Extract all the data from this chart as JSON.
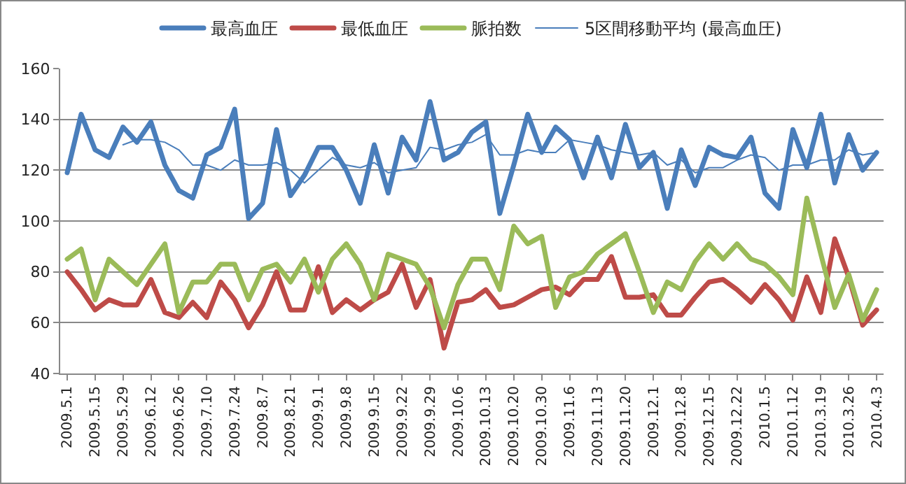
{
  "chart_data": {
    "type": "line",
    "categories": [
      "2009.5.1",
      null,
      "2009.5.15",
      null,
      "2009.5.29",
      null,
      "2009.6.12",
      null,
      "2009.6.26",
      null,
      "2009.7.10",
      null,
      "2009.7.24",
      null,
      "2009.8.7",
      null,
      "2009.8.21",
      null,
      "2009.9.1",
      null,
      "2009.9.8",
      null,
      "2009.9.15",
      null,
      "2009.9.22",
      null,
      "2009.9.29",
      null,
      "2009.10.6",
      null,
      "2009.10.13",
      null,
      "2009.10.20",
      null,
      "2009.10.30",
      null,
      "2009.11.6",
      null,
      "2009.11.13",
      null,
      "2009.11.20",
      null,
      "2009.12.1",
      null,
      "2009.12.8",
      null,
      "2009.12.15",
      null,
      "2009.12.22",
      null,
      "2010.1.5",
      null,
      "2010.1.12",
      null,
      "2010.3.19",
      null,
      "2010.3.26",
      null,
      "2010.4.3"
    ],
    "series": [
      {
        "name": "最高血圧",
        "color": "#4a7ebb",
        "values": [
          119,
          142,
          128,
          125,
          137,
          131,
          139,
          122,
          112,
          109,
          126,
          129,
          144,
          101,
          107,
          136,
          110,
          118,
          129,
          129,
          120,
          107,
          130,
          111,
          133,
          124,
          147,
          124,
          127,
          135,
          139,
          103,
          122,
          142,
          127,
          137,
          132,
          117,
          133,
          117,
          138,
          121,
          127,
          105,
          128,
          114,
          129,
          126,
          125,
          133,
          111,
          105,
          136,
          121,
          142,
          115,
          134,
          120,
          127
        ]
      },
      {
        "name": "最低血圧",
        "color": "#be4b48",
        "values": [
          80,
          73,
          65,
          69,
          67,
          67,
          77,
          64,
          62,
          68,
          62,
          76,
          69,
          58,
          67,
          80,
          65,
          65,
          82,
          64,
          69,
          65,
          69,
          72,
          83,
          66,
          77,
          50,
          68,
          69,
          73,
          66,
          67,
          70,
          73,
          74,
          71,
          77,
          77,
          86,
          70,
          70,
          71,
          63,
          63,
          70,
          76,
          77,
          73,
          68,
          75,
          69,
          61,
          78,
          64,
          93,
          78,
          59,
          65
        ]
      },
      {
        "name": "脈拍数",
        "color": "#9bbb59",
        "values": [
          85,
          89,
          69,
          85,
          80,
          75,
          83,
          91,
          64,
          76,
          76,
          83,
          83,
          69,
          81,
          83,
          76,
          85,
          72,
          85,
          91,
          83,
          69,
          87,
          85,
          83,
          74,
          58,
          75,
          85,
          85,
          73,
          98,
          91,
          94,
          66,
          78,
          80,
          87,
          91,
          95,
          80,
          64,
          76,
          73,
          84,
          91,
          85,
          91,
          85,
          83,
          78,
          71,
          109,
          87,
          66,
          79,
          61,
          73
        ]
      },
      {
        "name": "5区間移動平均 (最高血圧)",
        "color": "#4a7ebb",
        "values": [
          null,
          null,
          null,
          null,
          130,
          132,
          132,
          131,
          128,
          122,
          122,
          120,
          124,
          122,
          122,
          123,
          120,
          115,
          120,
          125,
          122,
          121,
          123,
          119,
          120,
          121,
          129,
          128,
          130,
          131,
          134,
          126,
          126,
          128,
          127,
          127,
          132,
          131,
          130,
          128,
          127,
          126,
          127,
          122,
          124,
          119,
          121,
          121,
          124,
          126,
          125,
          120,
          122,
          122,
          124,
          124,
          128,
          126,
          127
        ]
      }
    ],
    "ylim": [
      40,
      160
    ],
    "yticks": [
      40,
      60,
      80,
      100,
      120,
      140,
      160
    ],
    "grid": "y",
    "legend": "top",
    "marker": "none",
    "line_style": "solid"
  }
}
